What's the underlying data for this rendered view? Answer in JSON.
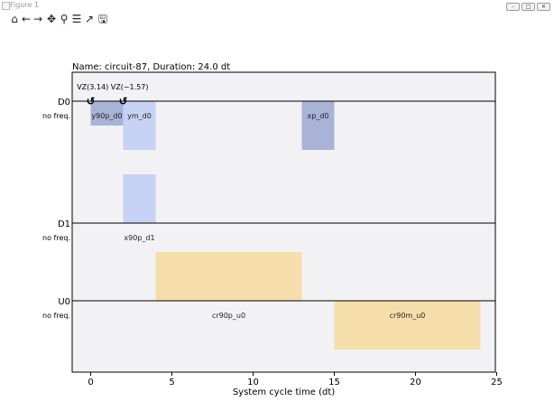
{
  "window": {
    "title": "Figure 1"
  },
  "window_controls": {
    "minimize": "–",
    "restore": "□",
    "close": "✕"
  },
  "toolbar": {
    "tools": [
      {
        "name": "home-icon",
        "glyph": "⌂"
      },
      {
        "name": "back-icon",
        "glyph": "←"
      },
      {
        "name": "forward-icon",
        "glyph": "→"
      },
      {
        "name": "pan-icon",
        "glyph": "✥"
      },
      {
        "name": "zoom-icon",
        "glyph": "⚲"
      },
      {
        "name": "configure-subplots-icon",
        "glyph": "☰"
      },
      {
        "name": "edit-axis-icon",
        "glyph": "↗"
      },
      {
        "name": "save-icon",
        "glyph": "🖫"
      }
    ]
  },
  "chart_data": {
    "type": "pulse-schedule",
    "title": "Name: circuit-87, Duration: 24.0 dt",
    "xlabel": "System cycle time (dt)",
    "xlim": [
      -1.2,
      25
    ],
    "xticks": [
      0,
      5,
      10,
      15,
      20,
      25
    ],
    "channels": [
      {
        "name": "D0",
        "freq": "no freq."
      },
      {
        "name": "D1",
        "freq": "no freq."
      },
      {
        "name": "U0",
        "freq": "no freq."
      }
    ],
    "phase_annotation": "VZ(3.14) VZ(−1.57)",
    "phase_markers": [
      {
        "channel": "D0",
        "t": 0,
        "symbol": "↺"
      },
      {
        "channel": "D0",
        "t": 2,
        "symbol": "↺"
      }
    ],
    "pulses": [
      {
        "channel": "D0",
        "label": "y90p_d0",
        "start": 0,
        "end": 2,
        "amp": 0.5,
        "color": "#a8b3d6"
      },
      {
        "channel": "D0",
        "label": "ym_d0",
        "start": 2,
        "end": 4,
        "amp": 1.0,
        "color": "#c7d3f5"
      },
      {
        "channel": "D0",
        "label": "xp_d0",
        "start": 13,
        "end": 15,
        "amp": 1.0,
        "color": "#a8b3d6"
      },
      {
        "channel": "D1",
        "label": "x90p_d1",
        "start": 2,
        "end": 4,
        "amp": 1.0,
        "color": "#c7d3f5",
        "direction": "up"
      },
      {
        "channel": "U0",
        "label": "cr90p_u0",
        "start": 4,
        "end": 13,
        "amp": 1.0,
        "color": "#f5deaa",
        "direction": "up"
      },
      {
        "channel": "U0",
        "label": "cr90m_u0",
        "start": 15,
        "end": 24,
        "amp": 1.0,
        "color": "#f5deaa"
      }
    ]
  },
  "colors": {
    "plot_bg": "#f2f2f4",
    "axis": "#000000",
    "text": "#000000"
  }
}
